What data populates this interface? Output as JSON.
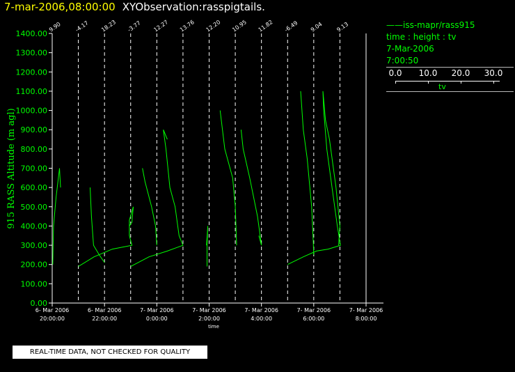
{
  "header": {
    "date_text": "7-mar-2006,08:00:00",
    "observation_text": "XYObservation:rasspigtails."
  },
  "legend": {
    "series_text": "iss-mapr/rass915",
    "variables_text": "time : height : tv",
    "date_text": "7-Mar-2006",
    "time_text": "7:00:50",
    "colorbar_ticks": [
      "0.0",
      "10.0",
      "20.0",
      "30.0"
    ],
    "colorbar_label": "tv"
  },
  "disclaimer": "REAL-TIME DATA, NOT CHECKED FOR QUALITY",
  "colors": {
    "series": "#00ff00",
    "axis": "#ffffff",
    "title_date": "#ffff00",
    "ylabel": "#00ff00"
  },
  "chart_data": {
    "type": "line",
    "xlabel": "time",
    "ylabel": "915 RASS Altitude (m agl)",
    "x_unit": "hours since 6-Mar-2006 20:00",
    "xlim": [
      0,
      12
    ],
    "ylim": [
      0,
      1400
    ],
    "ytick_labels": [
      "0.00",
      "100.00",
      "200.00",
      "300.00",
      "400.00",
      "500.00",
      "600.00",
      "700.00",
      "800.00",
      "900.00",
      "1000.00",
      "1100.00",
      "1200.00",
      "1300.00",
      "1400.00"
    ],
    "xticks": [
      {
        "x": 0,
        "date": "6- Mar 2006",
        "time": "20:00:00"
      },
      {
        "x": 2,
        "date": "6- Mar 2006",
        "time": "22:00:00"
      },
      {
        "x": 4,
        "date": "7- Mar 2006",
        "time": "0:00:00"
      },
      {
        "x": 6,
        "date": "7- Mar 2006",
        "time": "2:00:00"
      },
      {
        "x": 8,
        "date": "7- Mar 2006",
        "time": "4:00:00"
      },
      {
        "x": 10,
        "date": "7- Mar 2006",
        "time": "6:00:00"
      },
      {
        "x": 12,
        "date": "7- Mar 2006",
        "time": "8:00:00"
      }
    ],
    "profile_baselines": [
      {
        "x": 0.0,
        "label": "9.90"
      },
      {
        "x": 1.0,
        "label": "-4.17"
      },
      {
        "x": 2.0,
        "label": "18.23"
      },
      {
        "x": 3.0,
        "label": "-3.77"
      },
      {
        "x": 4.0,
        "label": "12.27"
      },
      {
        "x": 5.0,
        "label": "13.76"
      },
      {
        "x": 6.0,
        "label": "12.20"
      },
      {
        "x": 7.0,
        "label": "10.95"
      },
      {
        "x": 8.0,
        "label": "11.82"
      },
      {
        "x": 9.0,
        "label": "-6.49"
      },
      {
        "x": 10.0,
        "label": "9.04"
      },
      {
        "x": 11.0,
        "label": "9.13"
      }
    ],
    "series": [
      {
        "points": [
          [
            0.02,
            200
          ],
          [
            0.05,
            400
          ],
          [
            0.15,
            550
          ],
          [
            0.28,
            700
          ],
          [
            0.32,
            600
          ]
        ]
      },
      {
        "points": [
          [
            1.0,
            190
          ],
          [
            1.6,
            240
          ],
          [
            2.3,
            280
          ],
          [
            3.05,
            300
          ],
          [
            2.95,
            350
          ],
          [
            2.95,
            430
          ],
          [
            3.1,
            500
          ],
          [
            3.05,
            420
          ],
          [
            2.95,
            400
          ]
        ]
      },
      {
        "points": [
          [
            1.45,
            600
          ],
          [
            1.5,
            450
          ],
          [
            1.58,
            300
          ],
          [
            1.8,
            250
          ],
          [
            2.0,
            210
          ]
        ]
      },
      {
        "points": [
          [
            3.0,
            190
          ],
          [
            3.7,
            240
          ],
          [
            4.4,
            270
          ],
          [
            5.0,
            300
          ],
          [
            4.85,
            350
          ],
          [
            4.7,
            500
          ],
          [
            4.5,
            600
          ],
          [
            4.35,
            800
          ],
          [
            4.25,
            900
          ],
          [
            4.4,
            850
          ]
        ]
      },
      {
        "points": [
          [
            3.45,
            700
          ],
          [
            3.55,
            630
          ],
          [
            3.8,
            500
          ],
          [
            3.95,
            400
          ],
          [
            4.0,
            300
          ]
        ]
      },
      {
        "points": [
          [
            5.92,
            190
          ],
          [
            5.92,
            300
          ],
          [
            5.95,
            400
          ],
          [
            5.9,
            300
          ]
        ]
      },
      {
        "points": [
          [
            6.42,
            1000
          ],
          [
            6.6,
            800
          ],
          [
            6.9,
            650
          ],
          [
            7.0,
            500
          ],
          [
            7.05,
            300
          ]
        ]
      },
      {
        "points": [
          [
            7.22,
            900
          ],
          [
            7.3,
            800
          ],
          [
            7.55,
            650
          ],
          [
            7.85,
            450
          ],
          [
            8.0,
            300
          ],
          [
            7.9,
            350
          ]
        ]
      },
      {
        "points": [
          [
            9.0,
            200
          ],
          [
            9.6,
            240
          ],
          [
            10.1,
            270
          ],
          [
            10.55,
            280
          ],
          [
            11.02,
            300
          ],
          [
            10.9,
            400
          ],
          [
            10.7,
            600
          ],
          [
            10.5,
            800
          ],
          [
            10.38,
            1000
          ],
          [
            10.35,
            1100
          ],
          [
            10.45,
            950
          ],
          [
            10.6,
            850
          ],
          [
            10.85,
            600
          ],
          [
            11.0,
            400
          ],
          [
            10.95,
            300
          ]
        ]
      },
      {
        "points": [
          [
            9.5,
            1100
          ],
          [
            9.6,
            900
          ],
          [
            9.75,
            750
          ],
          [
            9.92,
            500
          ],
          [
            9.98,
            320
          ],
          [
            10.0,
            250
          ]
        ]
      }
    ]
  }
}
